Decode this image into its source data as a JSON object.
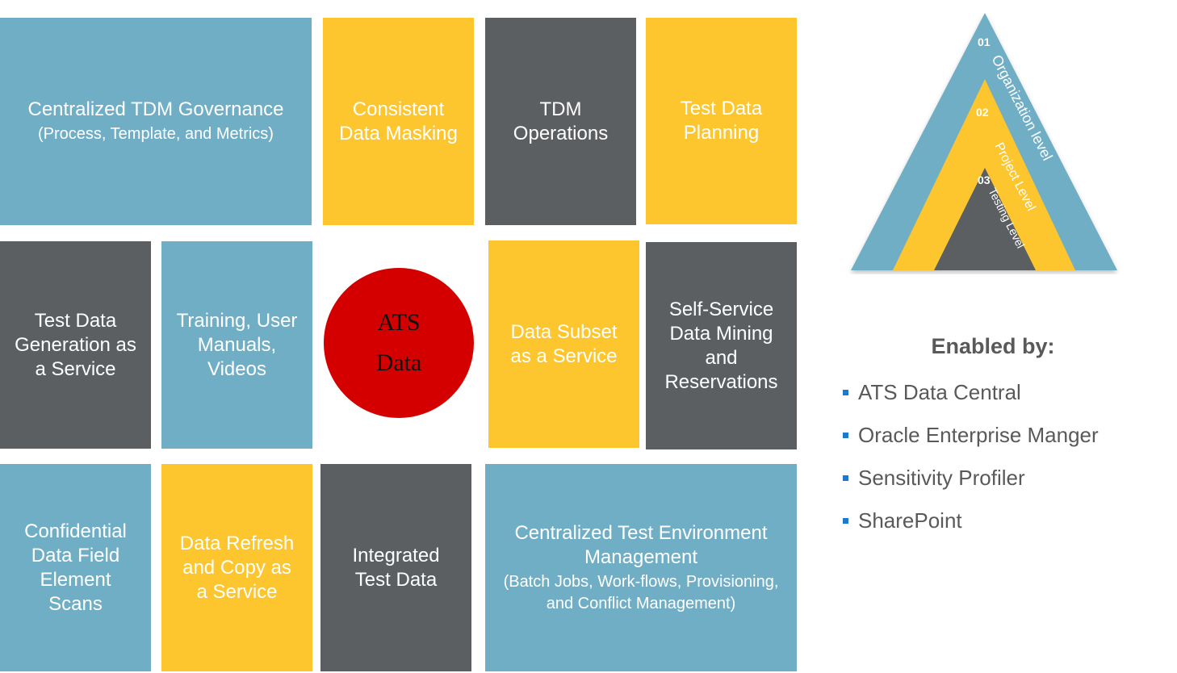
{
  "tiles": [
    {
      "id": "t1",
      "color": "blue",
      "main": "Centralized TDM Governance",
      "sub": "(Process, Template, and Metrics)"
    },
    {
      "id": "t2",
      "color": "yellow",
      "main": "Consistent\nData Masking",
      "sub": ""
    },
    {
      "id": "t3",
      "color": "gray",
      "main": "TDM\nOperations",
      "sub": ""
    },
    {
      "id": "t4",
      "color": "yellow",
      "main": "Test Data\nPlanning",
      "sub": ""
    },
    {
      "id": "t5",
      "color": "gray",
      "main": "Test Data\nGeneration as\na Service",
      "sub": ""
    },
    {
      "id": "t6",
      "color": "blue",
      "main": "Training, User\nManuals,\nVideos",
      "sub": ""
    },
    {
      "id": "t7",
      "color": "yellow",
      "main": "Data Subset\nas a Service",
      "sub": ""
    },
    {
      "id": "t8",
      "color": "gray",
      "main": "Self-Service\nData Mining\nand\nReservations",
      "sub": ""
    },
    {
      "id": "t9",
      "color": "blue",
      "main": "Confidential\nData Field\nElement\nScans",
      "sub": ""
    },
    {
      "id": "t10",
      "color": "yellow",
      "main": "Data Refresh\nand Copy as\na Service",
      "sub": ""
    },
    {
      "id": "t11",
      "color": "gray",
      "main": "Integrated\nTest Data",
      "sub": ""
    },
    {
      "id": "t12",
      "color": "blue",
      "main": "Centralized Test Environment\nManagement",
      "sub": "(Batch Jobs, Work-flows, Provisioning,\nand Conflict Management)"
    }
  ],
  "center": {
    "line1": "ATS",
    "line2": "Data"
  },
  "pyramid": {
    "levels": [
      {
        "number": "01",
        "label": "Organization level",
        "color": "#70aec6"
      },
      {
        "number": "02",
        "label": "Project Level",
        "color": "#fdc52e"
      },
      {
        "number": "03",
        "label": "Testing Level",
        "color": "#5c5f62"
      }
    ]
  },
  "enabled": {
    "title": "Enabled by:",
    "items": [
      "ATS Data Central",
      "Oracle Enterprise Manger",
      "Sensitivity Profiler",
      "SharePoint"
    ]
  },
  "colors": {
    "blue": "#70aec6",
    "yellow": "#fdc52e",
    "gray": "#5c5f62",
    "red": "#d40000",
    "bullet": "#1f78c8"
  }
}
